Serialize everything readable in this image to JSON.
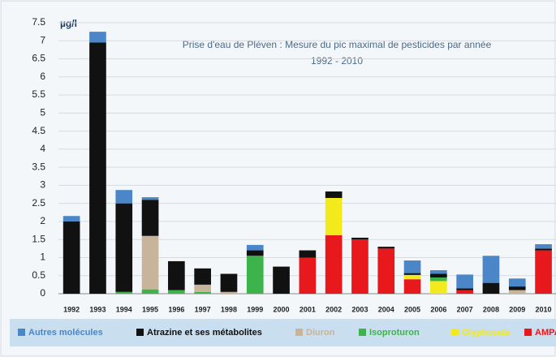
{
  "chart_data": {
    "type": "bar",
    "stacked": true,
    "title": "Prise d'eau de Pléven : Mesure du pic maximal de pesticides par année",
    "subtitle": "1992 - 2010",
    "y_label": "µg/l",
    "categories": [
      "1992",
      "1993",
      "1994",
      "1995",
      "1996",
      "1997",
      "1998",
      "1999",
      "2000",
      "2001",
      "2002",
      "2003",
      "2004",
      "2005",
      "2006",
      "2007",
      "2008",
      "2009",
      "2010"
    ],
    "series": [
      {
        "name": "Autres molécules",
        "color": "#4a86c8",
        "values": [
          0.15,
          0.3,
          0.37,
          0.07,
          0,
          0,
          0,
          0.15,
          0,
          0,
          0,
          0,
          0,
          0.35,
          0.1,
          0.38,
          0.75,
          0.22,
          0.12
        ]
      },
      {
        "name": "Atrazine et ses métabolites",
        "color": "#111111",
        "values": [
          2.0,
          6.95,
          2.45,
          1.0,
          0.8,
          0.45,
          0.5,
          0.15,
          0.75,
          0.2,
          0.18,
          0.05,
          0.05,
          0.05,
          0.1,
          0.05,
          0.3,
          0.1,
          0.05
        ]
      },
      {
        "name": "Diuron",
        "color": "#c8b49a",
        "values": [
          0,
          0,
          0,
          1.48,
          0,
          0.2,
          0.05,
          0,
          0,
          0,
          0,
          0,
          0,
          0,
          0,
          0,
          0,
          0.1,
          0
        ]
      },
      {
        "name": "Isoproturon",
        "color": "#3cb44b",
        "values": [
          0,
          0,
          0.05,
          0.12,
          0.1,
          0.05,
          0,
          1.05,
          0,
          0,
          0,
          0,
          0,
          0,
          0.1,
          0,
          0,
          0,
          0
        ]
      },
      {
        "name": "Glyphosate",
        "color": "#f2ea1c",
        "values": [
          0,
          0,
          0,
          0,
          0,
          0,
          0,
          0,
          0,
          0,
          1.03,
          0,
          0,
          0.12,
          0.35,
          0,
          0,
          0,
          0
        ]
      },
      {
        "name": "AMPA",
        "color": "#e8191c",
        "values": [
          0,
          0,
          0,
          0,
          0,
          0,
          0,
          0,
          0,
          1.0,
          1.62,
          1.5,
          1.25,
          0.4,
          0,
          0.1,
          0,
          0,
          1.2
        ]
      }
    ],
    "ylim": [
      0,
      7.5
    ],
    "yticks": [
      0,
      0.5,
      1,
      1.5,
      2,
      2.5,
      3,
      3.5,
      4,
      4.5,
      5,
      5.5,
      6,
      6.5,
      7,
      7.5
    ],
    "grid": true,
    "legend": "bottom"
  }
}
